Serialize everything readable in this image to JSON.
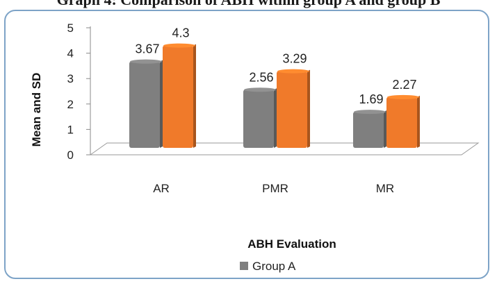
{
  "page": {
    "title": "Graph 4: Comparison of ABH within group A and group B"
  },
  "chart_data": {
    "type": "bar",
    "title": "",
    "xlabel": "ABH Evaluation",
    "ylabel": "Mean and SD",
    "categories": [
      "AR",
      "PMR",
      "MR"
    ],
    "ylim": [
      0,
      5
    ],
    "yticks": [
      "0",
      "1",
      "2",
      "3",
      "4",
      "5"
    ],
    "series": [
      {
        "name": "Group A",
        "values": [
          3.67,
          2.56,
          1.69
        ],
        "labels": [
          "3.67",
          "2.56",
          "1.69"
        ],
        "color": "#7f7f7f"
      },
      {
        "name": "",
        "values": [
          4.3,
          3.29,
          2.27
        ],
        "labels": [
          "4.3",
          "3.29",
          "2.27"
        ],
        "color": "#f07a2a"
      }
    ],
    "legend": {
      "position": "bottom",
      "entries": [
        "Group A"
      ]
    },
    "grid": false,
    "style": "3d-clustered-column"
  }
}
